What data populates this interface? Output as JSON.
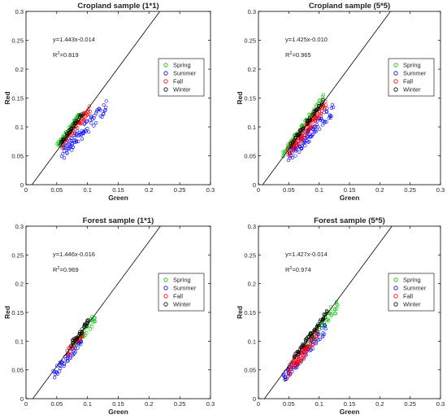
{
  "chart_data": [
    {
      "type": "scatter",
      "title": "Cropland sample (1*1)",
      "xlabel": "Green",
      "ylabel": "Red",
      "xlim": [
        0,
        0.3
      ],
      "ylim": [
        0,
        0.3
      ],
      "xticks": [
        "0",
        "0.05",
        "0.1",
        "0.15",
        "0.2",
        "0.25",
        "0.3"
      ],
      "yticks": [
        "0",
        "0.05",
        "0.1",
        "0.15",
        "0.2",
        "0.25",
        "0.3"
      ],
      "equation": "y=1.443x-0.014",
      "r2_prefix": "R",
      "r2_sup": "2",
      "r2_value": "=0.819",
      "fit_line": {
        "slope": 1.443,
        "intercept": -0.014
      },
      "legend_position": "right",
      "series": [
        {
          "name": "Spring",
          "color": "#00c000",
          "spread": 0.005,
          "slope_scale": 1.02,
          "offset": 0.006,
          "x": [
            0.052,
            0.055,
            0.058,
            0.06,
            0.062,
            0.065,
            0.068,
            0.07,
            0.072,
            0.075,
            0.078,
            0.08,
            0.083,
            0.086
          ]
        },
        {
          "name": "Summer",
          "color": "#0000ff",
          "spread": 0.012,
          "slope_scale": 0.78,
          "offset": 0.002,
          "x": [
            0.06,
            0.063,
            0.066,
            0.07,
            0.072,
            0.075,
            0.078,
            0.08,
            0.083,
            0.086,
            0.09,
            0.093,
            0.096,
            0.1,
            0.105,
            0.11,
            0.115,
            0.12,
            0.125,
            0.13
          ]
        },
        {
          "name": "Fall",
          "color": "#ff0000",
          "spread": 0.007,
          "slope_scale": 0.95,
          "offset": 0.003,
          "x": [
            0.06,
            0.064,
            0.068,
            0.072,
            0.076,
            0.08,
            0.083,
            0.086,
            0.09,
            0.093,
            0.096,
            0.1,
            0.103
          ]
        },
        {
          "name": "Winter",
          "color": "#000000",
          "spread": 0.004,
          "slope_scale": 1.0,
          "offset": 0.004,
          "x": [
            0.058,
            0.062,
            0.066,
            0.07,
            0.074,
            0.078,
            0.082,
            0.086,
            0.09
          ]
        }
      ]
    },
    {
      "type": "scatter",
      "title": "Cropland sample (5*5)",
      "xlabel": "Green",
      "ylabel": "Red",
      "xlim": [
        0,
        0.3
      ],
      "ylim": [
        0,
        0.3
      ],
      "xticks": [
        "0",
        "0.05",
        "0.1",
        "0.15",
        "0.2",
        "0.25",
        "0.3"
      ],
      "yticks": [
        "0",
        "0.05",
        "0.1",
        "0.15",
        "0.2",
        "0.25",
        "0.3"
      ],
      "equation": "y=1.425x-0.010",
      "r2_prefix": "R",
      "r2_sup": "2",
      "r2_value": "=0.965",
      "fit_line": {
        "slope": 1.425,
        "intercept": -0.01
      },
      "legend_position": "right",
      "series": [
        {
          "name": "Spring",
          "color": "#00c000",
          "spread": 0.005,
          "slope_scale": 1.03,
          "offset": 0.004,
          "x": [
            0.042,
            0.045,
            0.048,
            0.05,
            0.053,
            0.056,
            0.058,
            0.06,
            0.063,
            0.066,
            0.07,
            0.074,
            0.078,
            0.082,
            0.086,
            0.09,
            0.095,
            0.1,
            0.105
          ]
        },
        {
          "name": "Summer",
          "color": "#0000ff",
          "spread": 0.013,
          "slope_scale": 0.82,
          "offset": 0.0,
          "x": [
            0.05,
            0.053,
            0.056,
            0.06,
            0.062,
            0.065,
            0.068,
            0.07,
            0.072,
            0.075,
            0.078,
            0.08,
            0.082,
            0.085,
            0.088,
            0.09,
            0.093,
            0.096,
            0.1,
            0.104,
            0.108,
            0.112,
            0.118,
            0.122
          ]
        },
        {
          "name": "Fall",
          "color": "#ff0000",
          "spread": 0.011,
          "slope_scale": 0.93,
          "offset": 0.002,
          "x": [
            0.05,
            0.053,
            0.056,
            0.058,
            0.06,
            0.062,
            0.064,
            0.066,
            0.068,
            0.07,
            0.072,
            0.074,
            0.076,
            0.078,
            0.08,
            0.082,
            0.084,
            0.086,
            0.088,
            0.09,
            0.092,
            0.094,
            0.096,
            0.098,
            0.1,
            0.103,
            0.106,
            0.11
          ]
        },
        {
          "name": "Winter",
          "color": "#000000",
          "spread": 0.004,
          "slope_scale": 1.0,
          "offset": 0.003,
          "x": [
            0.055,
            0.06,
            0.065,
            0.07,
            0.075,
            0.08,
            0.085,
            0.09,
            0.095,
            0.1,
            0.105
          ]
        }
      ]
    },
    {
      "type": "scatter",
      "title": "Forest sample (1*1)",
      "xlabel": "Green",
      "ylabel": "Red",
      "xlim": [
        0,
        0.3
      ],
      "ylim": [
        0,
        0.3
      ],
      "xticks": [
        "0",
        "0.05",
        "0.1",
        "0.15",
        "0.2",
        "0.25",
        "0.3"
      ],
      "yticks": [
        "0",
        "0.05",
        "0.1",
        "0.15",
        "0.2",
        "0.25",
        "0.3"
      ],
      "equation": "y=1.446x-0.016",
      "r2_prefix": "R",
      "r2_sup": "2",
      "r2_value": "=0.969",
      "fit_line": {
        "slope": 1.446,
        "intercept": -0.016
      },
      "legend_position": "right",
      "series": [
        {
          "name": "Spring",
          "color": "#00c000",
          "spread": 0.01,
          "slope_scale": 0.97,
          "offset": 0.0,
          "x": [
            0.08,
            0.083,
            0.086,
            0.09,
            0.093,
            0.096,
            0.1,
            0.104,
            0.108,
            0.112
          ]
        },
        {
          "name": "Summer",
          "color": "#0000ff",
          "spread": 0.008,
          "slope_scale": 0.9,
          "offset": 0.0,
          "x": [
            0.046,
            0.05,
            0.054,
            0.058,
            0.062,
            0.066,
            0.07,
            0.074,
            0.078,
            0.082,
            0.086,
            0.09
          ]
        },
        {
          "name": "Fall",
          "color": "#ff0000",
          "spread": 0.006,
          "slope_scale": 0.95,
          "offset": 0.003,
          "x": [
            0.068,
            0.072,
            0.076,
            0.08,
            0.084,
            0.088,
            0.092
          ]
        },
        {
          "name": "Winter",
          "color": "#000000",
          "spread": 0.005,
          "slope_scale": 1.0,
          "offset": 0.004,
          "x": [
            0.075,
            0.078,
            0.082,
            0.086,
            0.09,
            0.094,
            0.098,
            0.1
          ]
        }
      ]
    },
    {
      "type": "scatter",
      "title": "Forest sample (5*5)",
      "xlabel": "Green",
      "ylabel": "Red",
      "xlim": [
        0,
        0.3
      ],
      "ylim": [
        0,
        0.3
      ],
      "xticks": [
        "0",
        "0.05",
        "0.1",
        "0.15",
        "0.2",
        "0.25",
        "0.3"
      ],
      "yticks": [
        "0",
        "0.05",
        "0.1",
        "0.15",
        "0.2",
        "0.25",
        "0.3"
      ],
      "equation": "y=1.427x-0.014",
      "r2_prefix": "R",
      "r2_sup": "2",
      "r2_value": "=0.974",
      "fit_line": {
        "slope": 1.427,
        "intercept": -0.014
      },
      "legend_position": "right",
      "series": [
        {
          "name": "Spring",
          "color": "#00c000",
          "spread": 0.012,
          "slope_scale": 0.96,
          "offset": 0.0,
          "x": [
            0.08,
            0.084,
            0.088,
            0.092,
            0.096,
            0.1,
            0.104,
            0.108,
            0.112,
            0.116,
            0.12,
            0.125,
            0.13
          ]
        },
        {
          "name": "Summer",
          "color": "#0000ff",
          "spread": 0.009,
          "slope_scale": 0.86,
          "offset": 0.0,
          "x": [
            0.042,
            0.045,
            0.048,
            0.05,
            0.053,
            0.056,
            0.06,
            0.063,
            0.066,
            0.07,
            0.074,
            0.078,
            0.082,
            0.086,
            0.09,
            0.095,
            0.1,
            0.105,
            0.11
          ]
        },
        {
          "name": "Fall",
          "color": "#ff0000",
          "spread": 0.01,
          "slope_scale": 0.9,
          "offset": 0.0,
          "x": [
            0.05,
            0.053,
            0.056,
            0.058,
            0.06,
            0.062,
            0.064,
            0.066,
            0.068,
            0.07,
            0.072,
            0.074,
            0.076,
            0.078,
            0.08,
            0.082,
            0.085,
            0.088,
            0.092,
            0.096
          ]
        },
        {
          "name": "Winter",
          "color": "#000000",
          "spread": 0.005,
          "slope_scale": 1.0,
          "offset": 0.002,
          "x": [
            0.06,
            0.064,
            0.068,
            0.072,
            0.076,
            0.08,
            0.084,
            0.088,
            0.092,
            0.096,
            0.1,
            0.104,
            0.108,
            0.112
          ]
        }
      ]
    }
  ]
}
